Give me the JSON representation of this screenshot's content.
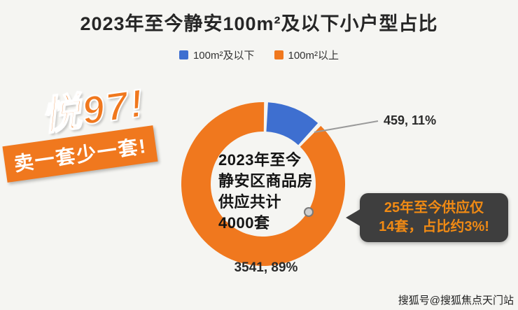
{
  "title": "2023年至今静安100m²及以下小户型占比",
  "legend": [
    {
      "label": "100m²及以下",
      "color": "#3e6fd0"
    },
    {
      "label": "100m²以上",
      "color": "#f0781e"
    }
  ],
  "chart_data": {
    "type": "pie",
    "subtype": "donut",
    "title": "2023年至今静安100m²及以下小户型占比",
    "total": 4000,
    "series": [
      {
        "name": "100m²及以下",
        "value": 459,
        "percent": "11%",
        "color": "#3e6fd0",
        "label": "459, 11%"
      },
      {
        "name": "100m²以上",
        "value": 3541,
        "percent": "89%",
        "color": "#f0781e",
        "label": "3541, 89%"
      }
    ],
    "center_text": [
      "2023年至今",
      "静安区商品房",
      "供应共计",
      "4000套"
    ],
    "legend_position": "top"
  },
  "stickers": {
    "line1": "悦97!",
    "line2": "卖一套少一套!"
  },
  "callout": {
    "line1": "25年至今供应仅",
    "line2": "14套，占比约3%!"
  },
  "watermark": "搜狐号@搜狐焦点天门站"
}
